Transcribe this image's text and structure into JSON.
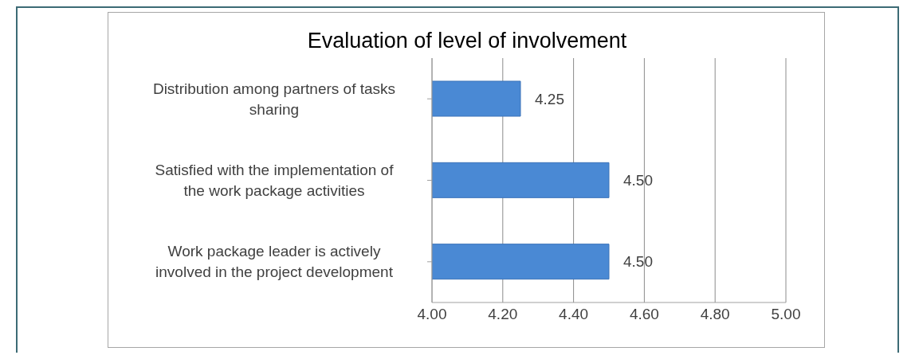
{
  "chart_data": {
    "type": "bar",
    "orientation": "horizontal",
    "title": "Evaluation of level of involvement",
    "categories": [
      "Distribution among partners of tasks sharing",
      "Satisfied with the implementation of the work package activities",
      "Work package leader is actively involved in the project development"
    ],
    "values": [
      4.25,
      4.5,
      4.5
    ],
    "value_labels": [
      "4.25",
      "4.50",
      "4.50"
    ],
    "color": "#4a89d4",
    "xlim": [
      4,
      5
    ],
    "xticks": [
      {
        "value": 4,
        "label": "4.00"
      },
      {
        "value": 4.2,
        "label": "4.20"
      },
      {
        "value": 4.4,
        "label": "4.40"
      },
      {
        "value": 4.6,
        "label": "4.60"
      },
      {
        "value": 4.8,
        "label": "4.80"
      },
      {
        "value": 5,
        "label": "5.00"
      }
    ],
    "grid": "x",
    "legend": false
  }
}
